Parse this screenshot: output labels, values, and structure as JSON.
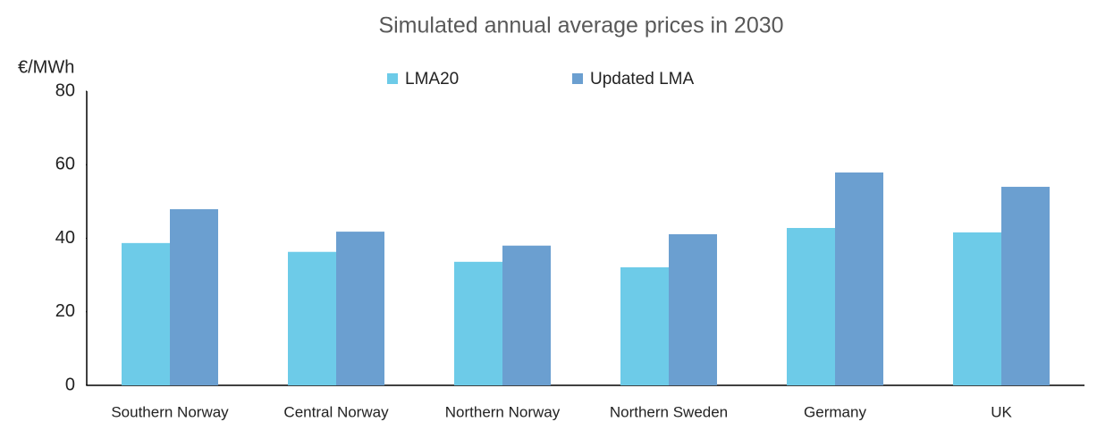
{
  "chart_data": {
    "type": "bar",
    "title": "Simulated annual average prices in 2030",
    "y_label": "€/MWh",
    "categories": [
      "Southern Norway",
      "Central Norway",
      "Northern Norway",
      "Northern Sweden",
      "Germany",
      "UK"
    ],
    "series": [
      {
        "name": "LMA20",
        "color": "#6dcbe8",
        "values": [
          38.7,
          36.3,
          33.6,
          32.1,
          42.8,
          41.6
        ]
      },
      {
        "name": "Updated LMA",
        "color": "#6b9fd0",
        "values": [
          47.9,
          41.8,
          38,
          41.1,
          57.9,
          54
        ]
      }
    ],
    "ylim": [
      0,
      80
    ],
    "yticks": [
      0,
      20,
      40,
      60,
      80
    ],
    "grid": false,
    "legend": "top"
  }
}
